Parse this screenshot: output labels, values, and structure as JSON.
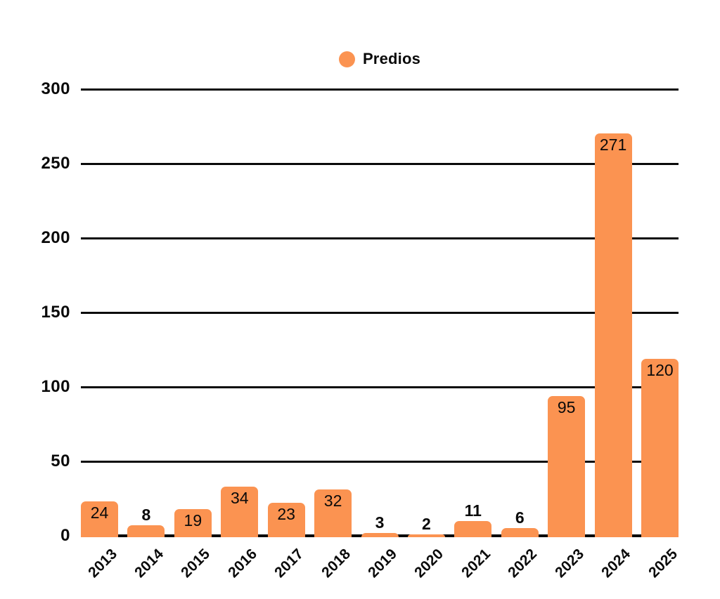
{
  "legend": {
    "label": "Predios"
  },
  "colors": {
    "bar": "#FB9351",
    "axis": "#0A0A0A",
    "text": "#0A0A0A",
    "background": "#FFFFFF"
  },
  "chart_data": {
    "type": "bar",
    "title": "",
    "categories": [
      "2013",
      "2014",
      "2015",
      "2016",
      "2017",
      "2018",
      "2019",
      "2020",
      "2021",
      "2022",
      "2023",
      "2024",
      "2025"
    ],
    "series": [
      {
        "name": "Predios",
        "values": [
          24,
          8,
          19,
          34,
          23,
          32,
          3,
          2,
          11,
          6,
          95,
          271,
          120
        ]
      }
    ],
    "xlabel": "",
    "ylabel": "",
    "ylim": [
      0,
      300
    ],
    "yticks": [
      0,
      50,
      100,
      150,
      200,
      250,
      300
    ],
    "grid": true,
    "legend_position": "top-center",
    "value_labels": "inside-top-or-above-when-short"
  }
}
